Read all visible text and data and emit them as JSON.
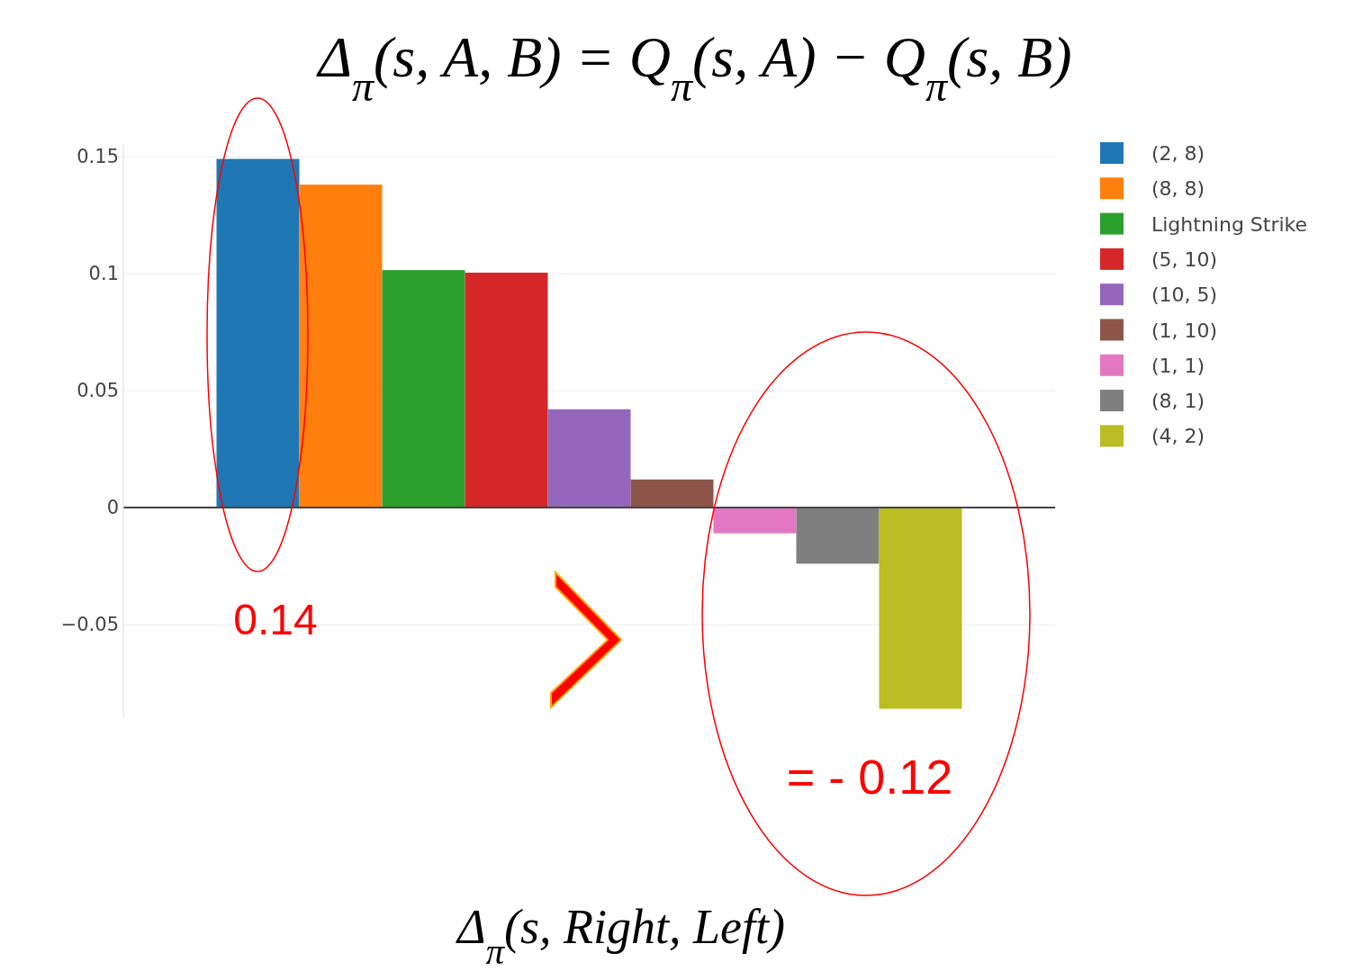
{
  "chart_data": {
    "type": "bar",
    "title": "Δ$_{π}$(s, A, B) = Q$_{π}$(s, A)  − Q$_{π}$(s, B)",
    "xlabel": "Δ$_{π}$(s, Right, Left)",
    "categories": [
      null
    ],
    "series": [
      {
        "name": "(2, 8)",
        "color": "#1f77b4",
        "values": [
          0.149
        ]
      },
      {
        "name": "(8, 8)",
        "color": "#ff7f0e",
        "values": [
          0.138
        ]
      },
      {
        "name": "Lightning Strike",
        "color": "#2ca02c",
        "values": [
          0.1015
        ]
      },
      {
        "name": "(5, 10)",
        "color": "#d62728",
        "values": [
          0.1004
        ]
      },
      {
        "name": "(10, 5)",
        "color": "#9467bd",
        "values": [
          0.042
        ]
      },
      {
        "name": "(1, 10)",
        "color": "#8c564b",
        "values": [
          0.012
        ]
      },
      {
        "name": "(1, 1)",
        "color": "#e377c2",
        "values": [
          -0.011
        ]
      },
      {
        "name": "(8, 1)",
        "color": "#7f7f7f",
        "values": [
          -0.024
        ]
      },
      {
        "name": "(4, 2)",
        "color": "#bcbd22",
        "values": [
          -0.086
        ]
      }
    ],
    "ylim": [
      -0.09,
      0.155
    ],
    "yticks": [
      {
        "value": -0.05,
        "label": "−0.05"
      },
      0,
      0.05,
      0.1,
      0.15
    ],
    "grid": "y",
    "legend": "top right",
    "annotations": [
      "0.14",
      "= - 0.12"
    ]
  }
}
